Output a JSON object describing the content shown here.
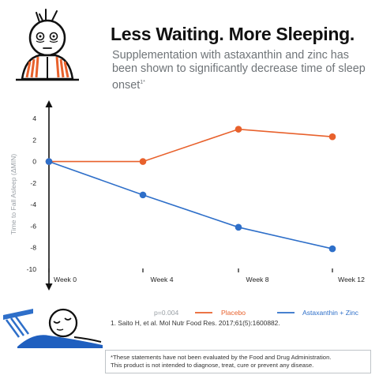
{
  "header": {
    "title": "Less Waiting. More Sleeping.",
    "subtitle": "Supplementation with astaxanthin and zinc has been shown to significantly decrease time of sleep onset",
    "subtitle_ref": "1*"
  },
  "chart_data": {
    "type": "line",
    "categories": [
      "Week 0",
      "Week 4",
      "Week 8",
      "Week 12"
    ],
    "ylabel": "Time to Fall Asleep (ΔMIN)",
    "ylim": [
      -10,
      4
    ],
    "yticks": [
      "4",
      "2",
      "0",
      "-2",
      "-4",
      "-6",
      "-8",
      "-10"
    ],
    "grid": false,
    "legend_position": "bottom-right",
    "annotation": "p=0.004",
    "series": [
      {
        "name": "Placebo",
        "color": "#e8612c",
        "values": [
          0,
          0,
          3,
          2.3
        ]
      },
      {
        "name": "Astaxanthin + Zinc",
        "color": "#2e6fc9",
        "values": [
          0,
          -3.1,
          -6.1,
          -8.1
        ]
      }
    ]
  },
  "footer": {
    "reference": "1. Saito H, et al. Mol Nutr Food Res. 2017;61(5):1600882.",
    "disclaimer_line1": "*These statements have not been evaluated by the Food and Drug Administration.",
    "disclaimer_line2": "This product is not intended to diagnose, treat, cure or prevent any disease."
  },
  "icons": {
    "awake_person": "tired-face-icon",
    "sleeping_person": "sleeping-face-icon"
  }
}
